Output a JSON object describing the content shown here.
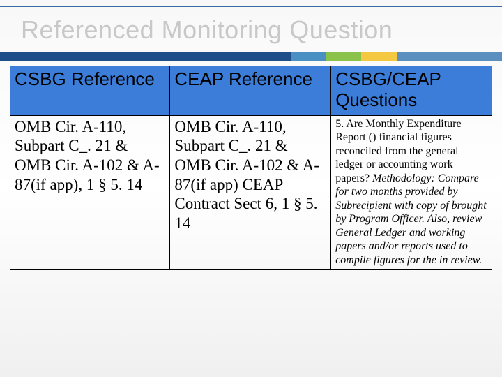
{
  "title": "Referenced Monitoring Question",
  "colors": {
    "title_text": "#c8c8c8",
    "header_bg": "#3b7dd8",
    "accent_main": "#1d4e89",
    "accent_segments": [
      "#4a90c2",
      "#8bc34a",
      "#f5c842",
      "#5a8fbf"
    ],
    "border": "#000000",
    "top_line": "#3a6aa5"
  },
  "table": {
    "columns": [
      {
        "header": "CSBG Reference"
      },
      {
        "header": "CEAP Reference"
      },
      {
        "header": "CSBG/CEAP Questions"
      }
    ],
    "row": {
      "csbg": "OMB Cir. A-110, Subpart C_. 21 & OMB Cir. A-102 & A-87(if app), 1 § 5. 14",
      "ceap": "OMB Cir. A-110, Subpart C_. 21 & OMB Cir. A-102 & A-87(if app) CEAP Contract Sect 6, 1 § 5. 14",
      "question_lead": "5.  Are Monthly Expenditure Report () financial figures reconciled from the general ledger or accounting work papers?",
      "question_meth": "Methodology:  Compare for two months provided by Subrecipient with copy of brought by Program Officer.  Also, review General Ledger and working papers and/or reports used to compile figures for the in review."
    }
  }
}
